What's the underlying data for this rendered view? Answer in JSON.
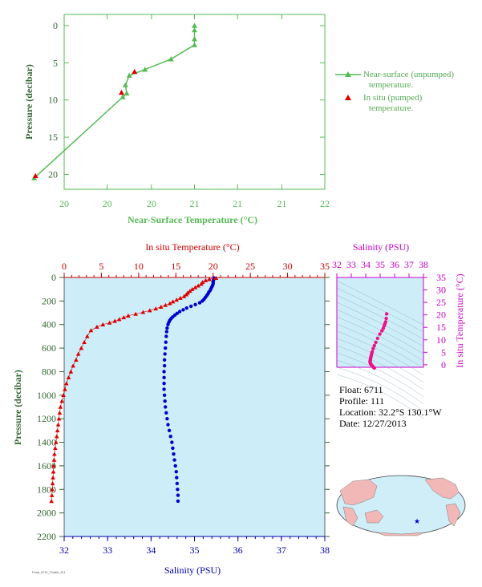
{
  "chart_data": [
    {
      "id": "near_surface",
      "type": "line",
      "xlabel": "Near-Surface Temperature (°C)",
      "ylabel": "Pressure (decibar)",
      "xlim": [
        20,
        22
      ],
      "ylim": [
        22,
        -1.5
      ],
      "x_ticks": [
        "20",
        "20",
        "20",
        "21",
        "21",
        "21",
        "22"
      ],
      "x_tick_values": [
        20.0,
        20.33,
        20.67,
        21.0,
        21.33,
        21.67,
        22.0
      ],
      "y_ticks": [
        "0",
        "5",
        "10",
        "15",
        "20"
      ],
      "y_tick_values": [
        0,
        5,
        10,
        15,
        20
      ],
      "color": "#55bb55",
      "series": [
        {
          "name": "Near-surface (unpumped) temperature.",
          "color": "#55bb55",
          "x": [
            21.0,
            21.0,
            21.0,
            21.0,
            20.82,
            20.62,
            20.5,
            20.47,
            20.48,
            20.45,
            19.77
          ],
          "y": [
            0.0,
            0.6,
            1.8,
            2.6,
            4.5,
            5.9,
            6.7,
            8.0,
            9.1,
            9.6,
            20.5
          ]
        },
        {
          "name": "In situ (pumped) temperature.",
          "color": "#dd0000",
          "x": [
            20.54,
            20.44,
            19.78
          ],
          "y": [
            6.2,
            9.0,
            20.2
          ]
        }
      ],
      "legend_position": "right"
    },
    {
      "id": "profile",
      "type": "scatter",
      "title_top": "In situ Temperature (°C)",
      "xlabel": "Salinity (PSU)",
      "ylabel": "Pressure (decibar)",
      "temp_lim": [
        0,
        35
      ],
      "temp_ticks": [
        "0",
        "5",
        "10",
        "15",
        "20",
        "25",
        "30",
        "35"
      ],
      "sal_lim": [
        32,
        38
      ],
      "sal_ticks": [
        "32",
        "33",
        "34",
        "35",
        "36",
        "37",
        "38"
      ],
      "ylim": [
        0,
        2200
      ],
      "y_ticks": [
        "0",
        "200",
        "400",
        "600",
        "800",
        "1000",
        "1200",
        "1400",
        "1600",
        "1800",
        "2000",
        "2200"
      ],
      "background": "#cdeef8",
      "temperature": {
        "color": "#dd0000",
        "pressure": [
          5,
          15,
          25,
          40,
          55,
          70,
          85,
          100,
          115,
          130,
          145,
          160,
          175,
          190,
          205,
          220,
          235,
          250,
          265,
          280,
          295,
          310,
          325,
          340,
          355,
          370,
          385,
          400,
          420,
          450,
          500,
          550,
          600,
          650,
          700,
          750,
          800,
          850,
          900,
          950,
          1000,
          1050,
          1100,
          1150,
          1200,
          1250,
          1300,
          1350,
          1400,
          1450,
          1500,
          1550,
          1600,
          1650,
          1700,
          1750,
          1800,
          1850,
          1900
        ],
        "values": [
          20.4,
          19.5,
          19.0,
          18.6,
          18.4,
          18.0,
          17.6,
          17.2,
          16.9,
          16.6,
          16.4,
          16.1,
          15.6,
          15.1,
          14.6,
          14.2,
          13.6,
          13.0,
          12.3,
          11.5,
          10.6,
          9.6,
          8.6,
          8.0,
          7.4,
          6.8,
          6.1,
          5.2,
          4.4,
          3.6,
          3.1,
          2.7,
          2.3,
          1.9,
          1.6,
          1.2,
          0.9,
          0.6,
          0.3,
          0.1,
          -0.1,
          -0.3,
          -0.5,
          -0.6,
          -0.7,
          -0.8,
          -0.9,
          -1.0,
          -1.1,
          -1.2,
          -1.3,
          -1.35,
          -1.4,
          -1.45,
          -1.5,
          -1.55,
          -1.6,
          -1.65,
          -1.7
        ]
      },
      "salinity": {
        "color": "#0000cc",
        "pressure": [
          5,
          20,
          35,
          50,
          65,
          80,
          95,
          110,
          125,
          140,
          155,
          170,
          185,
          200,
          215,
          230,
          245,
          260,
          275,
          290,
          305,
          320,
          335,
          350,
          365,
          380,
          400,
          430,
          460,
          500,
          550,
          600,
          650,
          700,
          750,
          800,
          850,
          900,
          950,
          1000,
          1050,
          1100,
          1150,
          1200,
          1250,
          1300,
          1350,
          1400,
          1450,
          1500,
          1550,
          1600,
          1650,
          1700,
          1750,
          1800,
          1850,
          1900
        ],
        "values": [
          35.45,
          35.44,
          35.43,
          35.43,
          35.42,
          35.4,
          35.38,
          35.36,
          35.33,
          35.31,
          35.28,
          35.25,
          35.22,
          35.18,
          35.12,
          35.02,
          34.92,
          34.82,
          34.74,
          34.66,
          34.6,
          34.55,
          34.5,
          34.46,
          34.43,
          34.41,
          34.39,
          34.37,
          34.36,
          34.35,
          34.34,
          34.33,
          34.32,
          34.31,
          34.31,
          34.3,
          34.3,
          34.3,
          34.3,
          34.31,
          34.32,
          34.33,
          34.35,
          34.37,
          34.39,
          34.42,
          34.45,
          34.48,
          34.5,
          34.52,
          34.54,
          34.56,
          34.58,
          34.59,
          34.6,
          34.61,
          34.62,
          34.62
        ]
      }
    },
    {
      "id": "ts_diagram",
      "type": "scatter",
      "title_top": "Salinity (PSU)",
      "ylabel": "In situ Temperature (°C)",
      "sal_lim": [
        32,
        38
      ],
      "sal_ticks": [
        "32",
        "33",
        "34",
        "35",
        "36",
        "37",
        "38"
      ],
      "temp_lim": [
        -1,
        35
      ],
      "temp_ticks": [
        "0",
        "5",
        "10",
        "15",
        "20",
        "25",
        "30",
        "35"
      ],
      "color": "#ee1188",
      "background": "#cdeef8",
      "salinity": [
        35.45,
        35.42,
        35.38,
        35.33,
        35.28,
        35.22,
        35.12,
        34.98,
        34.82,
        34.7,
        34.6,
        34.52,
        34.45,
        34.41,
        34.38,
        34.36,
        34.34,
        34.33,
        34.32,
        34.31,
        34.3,
        34.31,
        34.33,
        34.37,
        34.42,
        34.48,
        34.54,
        34.6
      ],
      "temperature": [
        20.4,
        18.6,
        17.2,
        16.4,
        15.6,
        14.6,
        13.6,
        12.3,
        10.6,
        9.0,
        7.7,
        6.5,
        5.2,
        4.4,
        3.6,
        3.1,
        2.7,
        2.3,
        1.9,
        1.6,
        1.2,
        0.9,
        0.5,
        0.2,
        -0.2,
        -0.6,
        -1.0,
        -1.3
      ]
    }
  ],
  "float_info": {
    "float": "Float:  6711",
    "profile": "Profile:  111",
    "location": "Location:  32.2°S  130.1°W",
    "date": "Date:  12/27/2013"
  },
  "map": {
    "ocean_color": "#cfeef8",
    "land_color": "#f2b8b8",
    "marker_color": "#0000cc"
  },
  "footer": "Float_6711_Profile_111"
}
